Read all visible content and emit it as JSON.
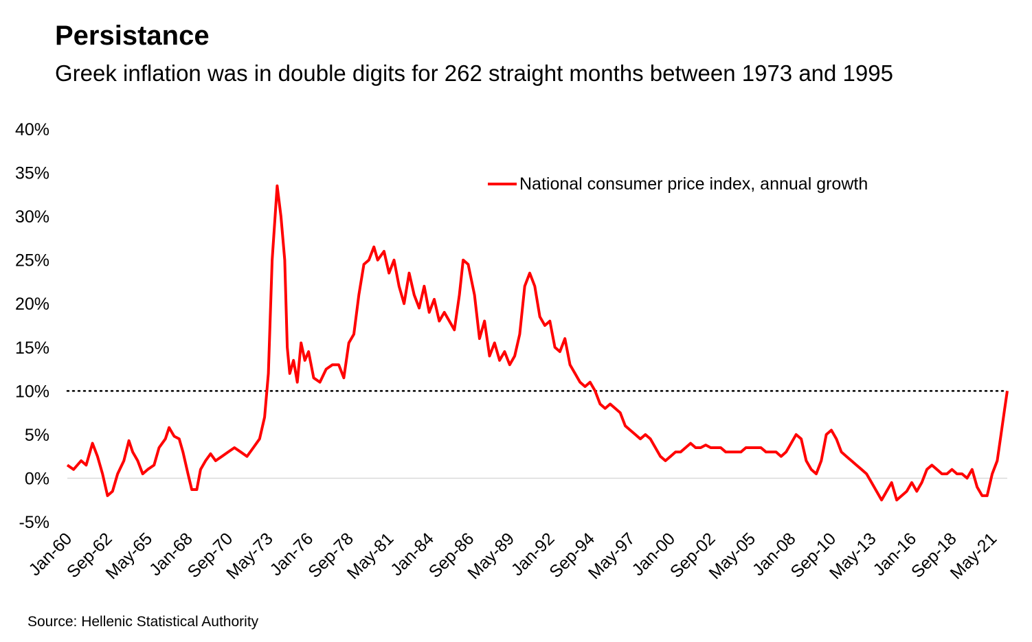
{
  "title": "Persistance",
  "subtitle": "Greek inflation was in double digits for 262 straight months between 1973 and 1995",
  "source": "Source: Hellenic Statistical Authority",
  "chart_data": {
    "type": "line",
    "title": "Persistance",
    "subtitle": "Greek inflation was in double digits for 262 straight months between 1973 and 1995",
    "xlabel": "",
    "ylabel": "",
    "y_unit": "%",
    "ylim": [
      -5,
      40
    ],
    "y_ticks": [
      -5,
      0,
      5,
      10,
      15,
      20,
      25,
      30,
      35,
      40
    ],
    "y_tick_labels": [
      "-5%",
      "0%",
      "5%",
      "10%",
      "15%",
      "20%",
      "25%",
      "30%",
      "35%",
      "40%"
    ],
    "x_tick_labels": [
      "Jan-60",
      "Sep-62",
      "May-65",
      "Jan-68",
      "Sep-70",
      "May-73",
      "Jan-76",
      "Sep-78",
      "May-81",
      "Jan-84",
      "Sep-86",
      "May-89",
      "Jan-92",
      "Sep-94",
      "May-97",
      "Jan-00",
      "Sep-02",
      "May-05",
      "Jan-08",
      "Sep-10",
      "May-13",
      "Jan-16",
      "Sep-18",
      "May-21"
    ],
    "x_tick_dates": [
      "1960-01",
      "1962-09",
      "1965-05",
      "1968-01",
      "1970-09",
      "1973-05",
      "1976-01",
      "1978-09",
      "1981-05",
      "1984-01",
      "1986-09",
      "1989-05",
      "1992-01",
      "1994-09",
      "1997-05",
      "2000-01",
      "2002-09",
      "2005-05",
      "2008-01",
      "2010-09",
      "2013-05",
      "2016-01",
      "2018-09",
      "2021-05"
    ],
    "xlim": [
      "1960-01",
      "2022-05"
    ],
    "reference_line": {
      "y": 10,
      "style": "dotted",
      "color": "#000000"
    },
    "grid": false,
    "legend_position": "top-right",
    "series": [
      {
        "name": "National consumer price index, annual growth",
        "color": "#ff0000",
        "points": [
          [
            "1960-01",
            1.5
          ],
          [
            "1960-06",
            1.0
          ],
          [
            "1960-12",
            2.0
          ],
          [
            "1961-04",
            1.5
          ],
          [
            "1961-09",
            4.0
          ],
          [
            "1962-01",
            2.5
          ],
          [
            "1962-05",
            0.5
          ],
          [
            "1962-09",
            -2.0
          ],
          [
            "1963-01",
            -1.5
          ],
          [
            "1963-05",
            0.5
          ],
          [
            "1963-10",
            2.0
          ],
          [
            "1964-02",
            4.3
          ],
          [
            "1964-05",
            3.0
          ],
          [
            "1964-09",
            2.0
          ],
          [
            "1965-01",
            0.5
          ],
          [
            "1965-05",
            1.0
          ],
          [
            "1965-10",
            1.5
          ],
          [
            "1966-02",
            3.5
          ],
          [
            "1966-07",
            4.5
          ],
          [
            "1966-10",
            5.8
          ],
          [
            "1967-02",
            4.8
          ],
          [
            "1967-06",
            4.5
          ],
          [
            "1967-09",
            3.0
          ],
          [
            "1968-01",
            0.5
          ],
          [
            "1968-04",
            -1.3
          ],
          [
            "1968-08",
            -1.3
          ],
          [
            "1968-11",
            1.0
          ],
          [
            "1969-03",
            2.0
          ],
          [
            "1969-07",
            2.8
          ],
          [
            "1969-11",
            2.0
          ],
          [
            "1970-04",
            2.5
          ],
          [
            "1970-09",
            3.0
          ],
          [
            "1971-02",
            3.5
          ],
          [
            "1971-07",
            3.0
          ],
          [
            "1971-12",
            2.5
          ],
          [
            "1972-05",
            3.5
          ],
          [
            "1972-10",
            4.5
          ],
          [
            "1973-02",
            7.0
          ],
          [
            "1973-05",
            12.0
          ],
          [
            "1973-08",
            25.0
          ],
          [
            "1973-12",
            33.5
          ],
          [
            "1974-03",
            30.0
          ],
          [
            "1974-06",
            25.0
          ],
          [
            "1974-08",
            15.0
          ],
          [
            "1974-10",
            12.0
          ],
          [
            "1975-01",
            13.5
          ],
          [
            "1975-04",
            11.0
          ],
          [
            "1975-07",
            15.5
          ],
          [
            "1975-10",
            13.5
          ],
          [
            "1976-01",
            14.5
          ],
          [
            "1976-05",
            11.5
          ],
          [
            "1976-10",
            11.0
          ],
          [
            "1977-03",
            12.5
          ],
          [
            "1977-08",
            13.0
          ],
          [
            "1978-01",
            13.0
          ],
          [
            "1978-05",
            11.5
          ],
          [
            "1978-09",
            15.5
          ],
          [
            "1979-01",
            16.5
          ],
          [
            "1979-05",
            21.0
          ],
          [
            "1979-09",
            24.5
          ],
          [
            "1980-01",
            25.0
          ],
          [
            "1980-05",
            26.5
          ],
          [
            "1980-08",
            25.0
          ],
          [
            "1981-01",
            26.0
          ],
          [
            "1981-05",
            23.5
          ],
          [
            "1981-09",
            25.0
          ],
          [
            "1982-01",
            22.0
          ],
          [
            "1982-05",
            20.0
          ],
          [
            "1982-09",
            23.5
          ],
          [
            "1983-01",
            21.0
          ],
          [
            "1983-05",
            19.5
          ],
          [
            "1983-09",
            22.0
          ],
          [
            "1984-01",
            19.0
          ],
          [
            "1984-05",
            20.5
          ],
          [
            "1984-09",
            18.0
          ],
          [
            "1985-01",
            19.0
          ],
          [
            "1985-05",
            18.0
          ],
          [
            "1985-09",
            17.0
          ],
          [
            "1986-01",
            21.0
          ],
          [
            "1986-04",
            25.0
          ],
          [
            "1986-08",
            24.5
          ],
          [
            "1987-01",
            21.0
          ],
          [
            "1987-05",
            16.0
          ],
          [
            "1987-09",
            18.0
          ],
          [
            "1988-01",
            14.0
          ],
          [
            "1988-05",
            15.5
          ],
          [
            "1988-09",
            13.5
          ],
          [
            "1989-01",
            14.5
          ],
          [
            "1989-05",
            13.0
          ],
          [
            "1989-09",
            14.0
          ],
          [
            "1990-01",
            16.5
          ],
          [
            "1990-05",
            22.0
          ],
          [
            "1990-09",
            23.5
          ],
          [
            "1991-01",
            22.0
          ],
          [
            "1991-05",
            18.5
          ],
          [
            "1991-09",
            17.5
          ],
          [
            "1992-01",
            18.0
          ],
          [
            "1992-05",
            15.0
          ],
          [
            "1992-09",
            14.5
          ],
          [
            "1993-01",
            16.0
          ],
          [
            "1993-05",
            13.0
          ],
          [
            "1993-09",
            12.0
          ],
          [
            "1994-01",
            11.0
          ],
          [
            "1994-05",
            10.5
          ],
          [
            "1994-09",
            11.0
          ],
          [
            "1995-01",
            10.0
          ],
          [
            "1995-05",
            8.5
          ],
          [
            "1995-09",
            8.0
          ],
          [
            "1996-01",
            8.5
          ],
          [
            "1996-05",
            8.0
          ],
          [
            "1996-09",
            7.5
          ],
          [
            "1997-01",
            6.0
          ],
          [
            "1997-05",
            5.5
          ],
          [
            "1997-09",
            5.0
          ],
          [
            "1998-01",
            4.5
          ],
          [
            "1998-05",
            5.0
          ],
          [
            "1998-09",
            4.5
          ],
          [
            "1999-01",
            3.5
          ],
          [
            "1999-05",
            2.5
          ],
          [
            "1999-09",
            2.0
          ],
          [
            "2000-01",
            2.5
          ],
          [
            "2000-05",
            3.0
          ],
          [
            "2000-09",
            3.0
          ],
          [
            "2001-01",
            3.5
          ],
          [
            "2001-05",
            4.0
          ],
          [
            "2001-09",
            3.5
          ],
          [
            "2002-01",
            3.5
          ],
          [
            "2002-05",
            3.8
          ],
          [
            "2002-09",
            3.5
          ],
          [
            "2003-01",
            3.5
          ],
          [
            "2003-05",
            3.5
          ],
          [
            "2003-09",
            3.0
          ],
          [
            "2004-01",
            3.0
          ],
          [
            "2004-05",
            3.0
          ],
          [
            "2004-09",
            3.0
          ],
          [
            "2005-01",
            3.5
          ],
          [
            "2005-05",
            3.5
          ],
          [
            "2005-09",
            3.5
          ],
          [
            "2006-01",
            3.5
          ],
          [
            "2006-05",
            3.0
          ],
          [
            "2006-09",
            3.0
          ],
          [
            "2007-01",
            3.0
          ],
          [
            "2007-05",
            2.5
          ],
          [
            "2007-09",
            3.0
          ],
          [
            "2008-01",
            4.0
          ],
          [
            "2008-05",
            5.0
          ],
          [
            "2008-09",
            4.5
          ],
          [
            "2009-01",
            2.0
          ],
          [
            "2009-05",
            1.0
          ],
          [
            "2009-09",
            0.5
          ],
          [
            "2010-01",
            2.0
          ],
          [
            "2010-05",
            5.0
          ],
          [
            "2010-09",
            5.5
          ],
          [
            "2011-01",
            4.5
          ],
          [
            "2011-05",
            3.0
          ],
          [
            "2011-09",
            2.5
          ],
          [
            "2012-01",
            2.0
          ],
          [
            "2012-05",
            1.5
          ],
          [
            "2012-09",
            1.0
          ],
          [
            "2013-01",
            0.5
          ],
          [
            "2013-05",
            -0.5
          ],
          [
            "2013-09",
            -1.5
          ],
          [
            "2014-01",
            -2.5
          ],
          [
            "2014-05",
            -1.5
          ],
          [
            "2014-09",
            -0.5
          ],
          [
            "2015-01",
            -2.5
          ],
          [
            "2015-05",
            -2.0
          ],
          [
            "2015-09",
            -1.5
          ],
          [
            "2016-01",
            -0.5
          ],
          [
            "2016-05",
            -1.5
          ],
          [
            "2016-09",
            -0.5
          ],
          [
            "2017-01",
            1.0
          ],
          [
            "2017-05",
            1.5
          ],
          [
            "2017-09",
            1.0
          ],
          [
            "2018-01",
            0.5
          ],
          [
            "2018-05",
            0.5
          ],
          [
            "2018-09",
            1.0
          ],
          [
            "2019-01",
            0.5
          ],
          [
            "2019-05",
            0.5
          ],
          [
            "2019-09",
            0.0
          ],
          [
            "2020-01",
            1.0
          ],
          [
            "2020-05",
            -1.0
          ],
          [
            "2020-09",
            -2.0
          ],
          [
            "2021-01",
            -2.0
          ],
          [
            "2021-05",
            0.5
          ],
          [
            "2021-09",
            2.0
          ],
          [
            "2021-12",
            5.0
          ],
          [
            "2022-03",
            8.0
          ],
          [
            "2022-05",
            10.0
          ]
        ]
      }
    ]
  }
}
